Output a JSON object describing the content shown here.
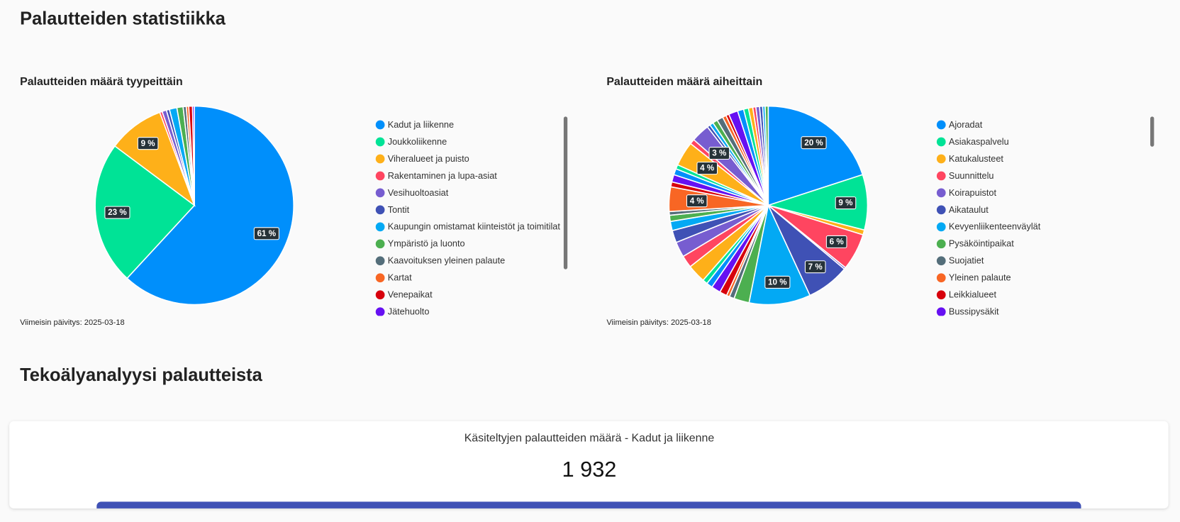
{
  "page": {
    "title": "Palautteiden statistiikka",
    "section_title": "Tekoälyanalyysi palautteista",
    "card": {
      "title": "Käsiteltyjen palautteiden määrä - Kadut ja liikenne",
      "value": "1 932"
    }
  },
  "chart_data": [
    {
      "type": "pie",
      "title": "Palautteiden määrä tyypeittäin",
      "footnote": "Viimeisin päivitys: 2025-03-18",
      "categories": [
        "Kadut ja liikenne",
        "Joukkoliikenne",
        "Viheralueet ja puisto",
        "Rakentaminen ja lupa-asiat",
        "Vesihuoltoasiat",
        "Tontit",
        "Kaupungin omistamat kiinteistöt ja toimitilat",
        "Ympäristö ja luonto",
        "Kaavoituksen yleinen palaute",
        "Kartat",
        "Venepaikat",
        "Jätehuolto"
      ],
      "values": [
        61,
        23,
        9,
        0.4,
        0.7,
        0.5,
        1.2,
        1.0,
        0.5,
        0.4,
        0.6,
        0.3
      ],
      "value_labels": [
        "61 %",
        "23 %",
        "9 %",
        null,
        null,
        null,
        null,
        null,
        null,
        null,
        null,
        null
      ],
      "palette": [
        "#008ffb",
        "#00e396",
        "#feb019",
        "#ff4560",
        "#775dd0",
        "#3f51b5",
        "#03a9f4",
        "#4caf50",
        "#546e7a",
        "#f86624",
        "#d7000c",
        "#6610f2"
      ]
    },
    {
      "type": "pie",
      "title": "Palautteiden määrä aiheittain",
      "footnote": "Viimeisin päivitys: 2025-03-18",
      "categories": [
        "Ajoradat",
        "Asiakaspalvelu",
        "Katukalusteet",
        "Suunnittelu",
        "Koirapuistot",
        "Aikataulut",
        "Kevyenliikenteenväylät",
        "Pysäköintipaikat",
        "Suojatiet",
        "Yleinen palaute",
        "Leikkialueet",
        "Bussipysäkit",
        null,
        null,
        null,
        null,
        null,
        null,
        null,
        null,
        null,
        null,
        null,
        null,
        null,
        null,
        null,
        null,
        null,
        null,
        null,
        null,
        null,
        null,
        null,
        null,
        null,
        null,
        null,
        null,
        null,
        null,
        null,
        null
      ],
      "values": [
        20,
        9,
        0.8,
        6,
        0.3,
        7,
        10,
        2.5,
        0.8,
        0.5,
        1.2,
        1.5,
        1.0,
        0.8,
        3.0,
        2.0,
        2.5,
        2.0,
        1.5,
        1.0,
        0.6,
        4,
        0.8,
        1.2,
        1.0,
        0.7,
        4,
        0.8,
        3,
        0.5,
        0.6,
        0.8,
        1.0,
        0.6,
        0.5,
        1.5,
        1.0,
        0.8,
        0.7,
        0.5,
        0.6,
        0.5,
        0.4,
        0.5
      ],
      "value_labels": [
        "20 %",
        "9 %",
        null,
        "6 %",
        null,
        "7 %",
        "10 %",
        null,
        null,
        null,
        null,
        null,
        null,
        null,
        null,
        null,
        null,
        null,
        null,
        null,
        null,
        "4 %",
        null,
        null,
        null,
        null,
        "4 %",
        null,
        "3 %",
        null,
        null,
        null,
        null,
        null,
        null,
        null,
        null,
        null,
        null,
        null,
        null,
        null,
        null,
        null
      ],
      "palette": [
        "#008ffb",
        "#00e396",
        "#feb019",
        "#ff4560",
        "#775dd0",
        "#3f51b5",
        "#03a9f4",
        "#4caf50",
        "#546e7a",
        "#f86624",
        "#d7000c",
        "#6610f2"
      ]
    }
  ]
}
